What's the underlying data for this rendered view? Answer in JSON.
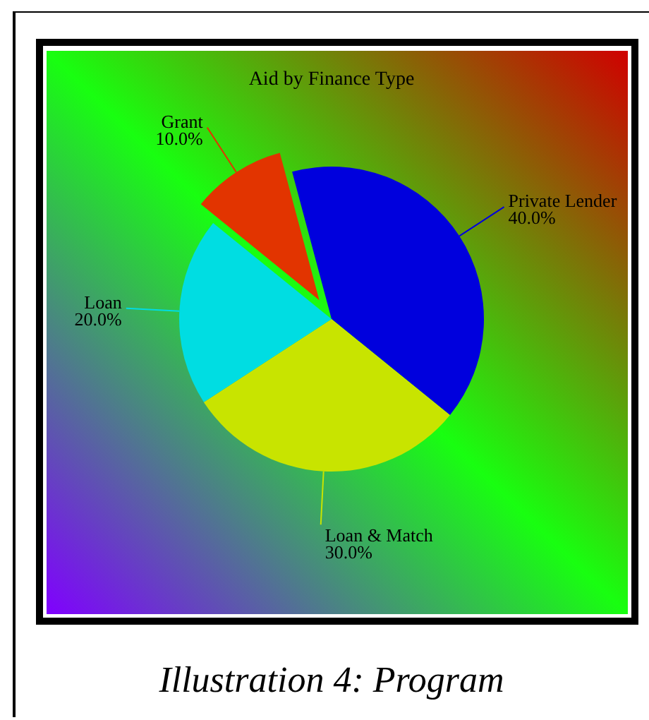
{
  "chart_data": {
    "type": "pie",
    "title": "Aid by Finance Type",
    "categories": [
      "Private Lender",
      "Loan & Match",
      "Loan",
      "Grant"
    ],
    "values": [
      40,
      30,
      20,
      10
    ],
    "colors": [
      "#0000dd",
      "#c8e400",
      "#00dde2",
      "#e23400"
    ],
    "value_labels": [
      "40.0%",
      "30.0%",
      "20.0%",
      "10.0%"
    ],
    "annotations": [
      "Illustration 4: Program"
    ]
  }
}
